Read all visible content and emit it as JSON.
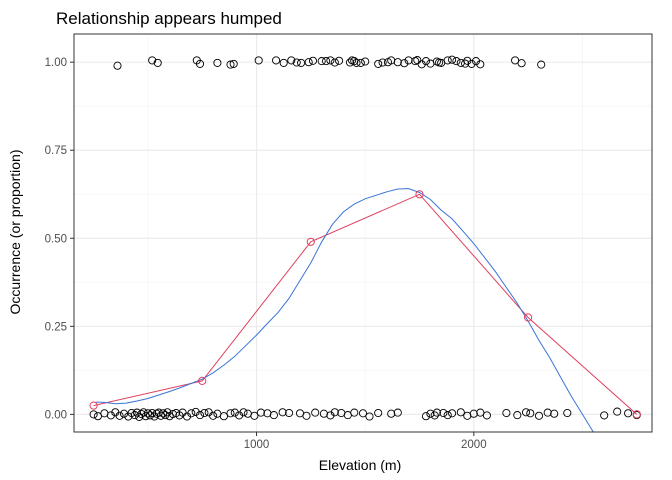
{
  "chart_data": {
    "type": "scatter",
    "title": "Relationship appears humped",
    "xlabel": "Elevation (m)",
    "ylabel": "Occurrence (or proportion)",
    "xlim": [
      160,
      2820
    ],
    "ylim": [
      -0.05,
      1.08
    ],
    "x_ticks": [
      1000,
      2000
    ],
    "x_tick_labels": [
      "1000",
      "2000"
    ],
    "y_ticks": [
      0,
      0.25,
      0.5,
      0.75,
      1.0
    ],
    "y_tick_labels": [
      "0.00",
      "0.25",
      "0.50",
      "0.75",
      "1.00"
    ],
    "grid": true,
    "legend": "none",
    "colors": {
      "points": "#000000",
      "binned": "#e0405e",
      "smooth": "#3a75d6",
      "grid_major": "#ebebeb",
      "grid_minor": "#f5f5f5",
      "panel_border": "#333333"
    },
    "series": [
      {
        "kind": "points",
        "x": [
          360,
          520,
          545,
          725,
          740,
          820,
          880,
          895,
          1010,
          1090,
          1125,
          1160,
          1185,
          1205,
          1240,
          1260,
          1300,
          1320,
          1340,
          1360,
          1380,
          1430,
          1440,
          1450,
          1460,
          1480,
          1500,
          1560,
          1580,
          1605,
          1620,
          1650,
          1680,
          1700,
          1730,
          1740,
          1760,
          1780,
          1800,
          1830,
          1840,
          1850,
          1880,
          1900,
          1920,
          1940,
          1960,
          1970,
          1990,
          2010,
          2030,
          2190,
          2220,
          2310
        ],
        "y": [
          0.99,
          1.005,
          0.998,
          1.005,
          0.995,
          0.998,
          0.993,
          0.995,
          1.005,
          1.005,
          0.998,
          1.005,
          0.999,
          0.998,
          1.0,
          1.004,
          1.003,
          1.003,
          1.005,
          0.999,
          1.004,
          0.999,
          1.005,
          1.003,
          0.998,
          0.998,
          1.002,
          0.995,
          0.999,
          1.0,
          1.005,
          1.0,
          0.997,
          1.005,
          1.003,
          1.006,
          0.994,
          1.003,
          0.996,
          1.002,
          0.999,
          0.998,
          1.005,
          1.007,
          1.003,
          0.998,
          0.996,
          1.004,
          0.995,
          1.003,
          0.994,
          1.005,
          0.997,
          0.993
        ]
      },
      {
        "kind": "points",
        "x": [
          250,
          270,
          300,
          330,
          350,
          370,
          390,
          410,
          425,
          440,
          450,
          460,
          470,
          480,
          490,
          500,
          510,
          520,
          530,
          540,
          550,
          560,
          570,
          580,
          590,
          600,
          615,
          630,
          645,
          660,
          680,
          700,
          720,
          740,
          760,
          780,
          800,
          820,
          850,
          880,
          900,
          920,
          940,
          960,
          990,
          1020,
          1050,
          1080,
          1120,
          1150,
          1200,
          1230,
          1270,
          1310,
          1340,
          1360,
          1390,
          1420,
          1450,
          1490,
          1520,
          1560,
          1620,
          1650,
          1780,
          1800,
          1820,
          1830,
          1860,
          1880,
          1900,
          1940,
          1970,
          2000,
          2030,
          2060,
          2150,
          2200,
          2240,
          2260,
          2300,
          2340,
          2370,
          2430,
          2600,
          2660,
          2710,
          2750
        ],
        "y": [
          0.0,
          -0.005,
          0.003,
          -0.003,
          0.006,
          -0.004,
          0.002,
          -0.006,
          0.004,
          -0.002,
          0.005,
          -0.007,
          0.001,
          0.006,
          -0.005,
          0.003,
          -0.003,
          0.004,
          -0.006,
          0.002,
          0.005,
          -0.004,
          0.003,
          -0.002,
          0.006,
          -0.005,
          0.001,
          0.004,
          -0.003,
          0.005,
          -0.006,
          0.003,
          0.007,
          -0.002,
          0.004,
          0.006,
          -0.004,
          0.002,
          -0.005,
          0.003,
          0.005,
          -0.003,
          0.006,
          0.002,
          -0.004,
          0.005,
          0.003,
          -0.002,
          0.006,
          0.004,
          0.003,
          -0.004,
          0.005,
          0.002,
          -0.003,
          0.006,
          0.004,
          -0.002,
          0.005,
          0.003,
          -0.006,
          0.004,
          0.002,
          0.005,
          -0.005,
          0.002,
          -0.003,
          0.005,
          0.004,
          -0.002,
          0.003,
          0.006,
          -0.004,
          0.002,
          0.005,
          -0.003,
          0.004,
          -0.002,
          0.006,
          0.003,
          -0.004,
          0.005,
          0.002,
          0.004,
          -0.003,
          0.008,
          0.003,
          -0.002
        ]
      },
      {
        "kind": "binned_means",
        "x": [
          250,
          750,
          1250,
          1750,
          2250,
          2750
        ],
        "y": [
          0.025,
          0.095,
          0.49,
          0.625,
          0.275,
          0.0
        ]
      },
      {
        "kind": "smooth",
        "x": [
          260,
          300,
          350,
          400,
          450,
          500,
          550,
          600,
          650,
          700,
          750,
          800,
          850,
          900,
          950,
          1000,
          1050,
          1100,
          1150,
          1200,
          1250,
          1300,
          1350,
          1400,
          1450,
          1500,
          1550,
          1600,
          1650,
          1700,
          1750,
          1800,
          1850,
          1900,
          1950,
          2000,
          2050,
          2100,
          2150,
          2200,
          2250,
          2300,
          2350,
          2400,
          2450,
          2500,
          2550
        ],
        "y": [
          0.035,
          0.034,
          0.03,
          0.032,
          0.038,
          0.045,
          0.055,
          0.065,
          0.076,
          0.088,
          0.1,
          0.118,
          0.14,
          0.165,
          0.195,
          0.225,
          0.258,
          0.29,
          0.33,
          0.38,
          0.43,
          0.49,
          0.54,
          0.575,
          0.597,
          0.612,
          0.622,
          0.632,
          0.64,
          0.641,
          0.63,
          0.61,
          0.58,
          0.555,
          0.52,
          0.485,
          0.445,
          0.405,
          0.36,
          0.315,
          0.265,
          0.21,
          0.16,
          0.105,
          0.05,
          0.0,
          -0.05
        ]
      }
    ]
  }
}
